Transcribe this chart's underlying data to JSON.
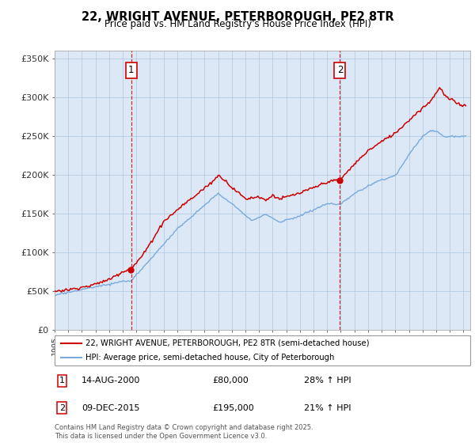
{
  "title": "22, WRIGHT AVENUE, PETERBOROUGH, PE2 8TR",
  "subtitle": "Price paid vs. HM Land Registry's House Price Index (HPI)",
  "legend_line1": "22, WRIGHT AVENUE, PETERBOROUGH, PE2 8TR (semi-detached house)",
  "legend_line2": "HPI: Average price, semi-detached house, City of Peterborough",
  "annotation1_label": "1",
  "annotation1_date": "14-AUG-2000",
  "annotation1_price": "£80,000",
  "annotation1_hpi": "28% ↑ HPI",
  "annotation2_label": "2",
  "annotation2_date": "09-DEC-2015",
  "annotation2_price": "£195,000",
  "annotation2_hpi": "21% ↑ HPI",
  "footer": "Contains HM Land Registry data © Crown copyright and database right 2025.\nThis data is licensed under the Open Government Licence v3.0.",
  "purchase1_year": 2000.62,
  "purchase1_value": 80000,
  "purchase2_year": 2015.94,
  "purchase2_value": 195000,
  "hpi_color": "#7aaadd",
  "price_color": "#cc0000",
  "vline_color": "#cc0000",
  "chart_bg_color": "#dce8f5",
  "background_color": "#ffffff",
  "grid_color": "#b0c8e0",
  "ylim": [
    0,
    360000
  ],
  "xlim_start": 1995,
  "xlim_end": 2025.5,
  "yticks": [
    0,
    50000,
    100000,
    150000,
    200000,
    250000,
    300000,
    350000
  ],
  "ytick_labels": [
    "£0",
    "£50K",
    "£100K",
    "£150K",
    "£200K",
    "£250K",
    "£300K",
    "£350K"
  ]
}
